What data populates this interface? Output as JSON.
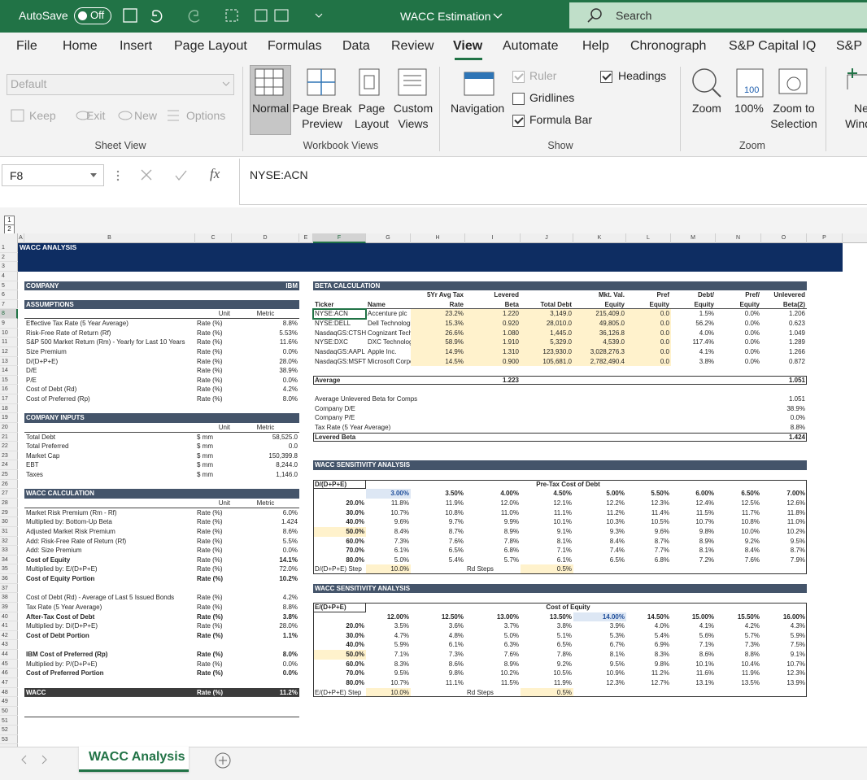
{
  "title_bar": {
    "autosave": "AutoSave",
    "autosave_state": "Off",
    "document": "WACC Estimation",
    "search": "Search"
  },
  "tabs": [
    "File",
    "Home",
    "Insert",
    "Page Layout",
    "Formulas",
    "Data",
    "Review",
    "View",
    "Automate",
    "Help",
    "Chronograph",
    "S&P Capital IQ",
    "S&P"
  ],
  "ribbon": {
    "sheet_view": {
      "dropdown": "Default",
      "buttons": [
        "Keep",
        "Exit",
        "New",
        "Options"
      ],
      "label": "Sheet View"
    },
    "workbook_views": {
      "buttons": [
        "Normal",
        "Page Break Preview",
        "Page Layout",
        "Custom Views"
      ],
      "label": "Workbook Views"
    },
    "navigation": "Navigation",
    "show": {
      "options": [
        {
          "label": "Ruler",
          "checked": true
        },
        {
          "label": "Gridlines",
          "checked": false
        },
        {
          "label": "Formula Bar",
          "checked": true
        },
        {
          "label": "Headings",
          "checked": true
        }
      ],
      "label": "Show"
    },
    "zoom": {
      "buttons": [
        "Zoom",
        "100%",
        "Zoom to Selection"
      ],
      "icon_text": "100",
      "label": "Zoom"
    },
    "window": {
      "buttons": [
        "New Window"
      ]
    }
  },
  "formula_bar": {
    "name_box": "F8",
    "fx": "fx",
    "content": "NYSE:ACN"
  },
  "outline_levels": [
    "1",
    "2"
  ],
  "sheet": {
    "column_headers": [
      "A",
      "B",
      "C",
      "D",
      "E",
      "F",
      "G",
      "H",
      "I",
      "J",
      "K",
      "L",
      "M",
      "N",
      "O",
      "P"
    ],
    "row_headers": [
      "1",
      "2",
      "3",
      "4",
      "5",
      "6",
      "7",
      "8",
      "9",
      "10",
      "11",
      "12",
      "13",
      "14",
      "15",
      "16",
      "17",
      "18",
      "19",
      "20",
      "21",
      "22",
      "23",
      "24",
      "25",
      "26",
      "27",
      "28",
      "29",
      "30",
      "31",
      "32",
      "33",
      "34",
      "35",
      "36",
      "37",
      "38",
      "39",
      "40",
      "41",
      "42",
      "43",
      "44",
      "45",
      "46",
      "47",
      "48",
      "49",
      "50",
      "51",
      "52",
      "53"
    ],
    "rows": [
      {
        "A": "WACC ANALYSIS"
      },
      {},
      {},
      {},
      {
        "B": "COMPANY",
        "D": "IBM",
        "F": "BETA CALCULATION"
      },
      {
        "H": "5Yr Avg Tax",
        "I": "Levered",
        "K": "Mkt. Val.",
        "L": "Pref",
        "M": "Debt/",
        "N": "Pref/",
        "O": "Unlevered"
      },
      {
        "B": "ASSUMPTIONS",
        "F": "Ticker",
        "G": "Name",
        "H": "Rate",
        "I": "Beta",
        "J": "Total Debt",
        "K": "Equity",
        "L": "Equity",
        "M": "Equity",
        "N": "Equity",
        "O": "Beta(2)"
      },
      {
        "C": "Unit",
        "D": "Metric",
        "F": "NYSE:ACN",
        "G": "Accenture plc",
        "H": "23.2%",
        "I": "1.220",
        "J": "3,149.0",
        "K": "215,409.0",
        "L": "0.0",
        "M": "1.5%",
        "N": "0.0%",
        "O": "1.206"
      },
      {
        "B": "Effective Tax Rate (5 Year Average)",
        "C": "Rate (%)",
        "D": "8.8%",
        "F": "NYSE:DELL",
        "G": "Dell Technologies Inc.",
        "H": "15.3%",
        "I": "0.920",
        "J": "28,010.0",
        "K": "49,805.0",
        "L": "0.0",
        "M": "56.2%",
        "N": "0.0%",
        "O": "0.623"
      },
      {
        "B": "Risk-Free Rate of Return (Rf)",
        "C": "Rate (%)",
        "D": "5.53%",
        "F": "NasdaqGS:CTSH",
        "G": "Cognizant Technology Solutions",
        "H": "26.6%",
        "I": "1.080",
        "J": "1,445.0",
        "K": "36,126.8",
        "L": "0.0",
        "M": "4.0%",
        "N": "0.0%",
        "O": "1.049"
      },
      {
        "B": "S&P 500 Market Return (Rm) - Yearly for Last 10 Years",
        "C": "Rate (%)",
        "D": "11.6%",
        "F": "NYSE:DXC",
        "G": "DXC Technology",
        "H": "58.9%",
        "I": "1.910",
        "J": "5,329.0",
        "K": "4,539.0",
        "L": "0.0",
        "M": "117.4%",
        "N": "0.0%",
        "O": "1.289"
      },
      {
        "B": "Size Premium",
        "C": "Rate (%)",
        "D": "0.0%",
        "F": "NasdaqGS:AAPL",
        "G": "Apple Inc.",
        "H": "14.9%",
        "I": "1.310",
        "J": "123,930.0",
        "K": "3,028,276.3",
        "L": "0.0",
        "M": "4.1%",
        "N": "0.0%",
        "O": "1.266"
      },
      {
        "B": "D/(D+P+E)",
        "C": "Rate (%)",
        "D": "28.0%",
        "F": "NasdaqGS:MSFT",
        "G": "Microsoft Corporation",
        "H": "14.5%",
        "I": "0.900",
        "J": "105,681.0",
        "K": "2,782,490.4",
        "L": "0.0",
        "M": "3.8%",
        "N": "0.0%",
        "O": "0.872"
      },
      {
        "B": "D/E",
        "C": "Rate (%)",
        "D": "38.9%"
      },
      {
        "B": "P/E",
        "C": "Rate (%)",
        "D": "0.0%",
        "F": "Average",
        "I": "1.223",
        "O": "1.051"
      },
      {
        "B": "Cost of Debt (Rd)",
        "C": "Rate (%)",
        "D": "4.2%"
      },
      {
        "B": "Cost of Preferred (Rp)",
        "C": "Rate (%)",
        "D": "8.0%",
        "F": "Average Unlevered Beta for Comps",
        "O": "1.051"
      },
      {
        "F": "Company D/E",
        "O": "38.9%"
      },
      {
        "B": "COMPANY INPUTS",
        "F": "Company P/E",
        "O": "0.0%"
      },
      {
        "C": "Unit",
        "D": "Metric",
        "F": "Tax Rate (5 Year Average)",
        "O": "8.8%"
      },
      {
        "B": "Total Debt",
        "C": "$ mm",
        "D": "58,525.0",
        "F": "Levered Beta",
        "O": "1.424"
      },
      {
        "B": "Total Preferred",
        "C": "$ mm",
        "D": "0.0"
      },
      {
        "B": "Market Cap",
        "C": "$ mm",
        "D": "150,399.8"
      },
      {
        "B": "EBT",
        "C": "$ mm",
        "D": "8,244.0",
        "F": "WACC SENSITIVITY ANALYSIS"
      },
      {
        "B": "Taxes",
        "C": "$ mm",
        "D": "1,146.0"
      },
      {
        "F": "D/(D+P+E)",
        "J": "Pre-Tax Cost of Debt"
      },
      {
        "B": "WACC CALCULATION",
        "G": "3.00%",
        "H": "3.50%",
        "I": "4.00%",
        "J": "4.50%",
        "K": "5.00%",
        "L": "5.50%",
        "M": "6.00%",
        "N": "6.50%",
        "O": "7.00%"
      },
      {
        "C": "Unit",
        "D": "Metric",
        "F": "20.0%",
        "G": "11.8%",
        "H": "11.9%",
        "I": "12.0%",
        "J": "12.1%",
        "K": "12.2%",
        "L": "12.3%",
        "M": "12.4%",
        "N": "12.5%",
        "O": "12.6%"
      },
      {
        "B": "Market Risk Premium (Rm - Rf)",
        "C": "Rate (%)",
        "D": "6.0%",
        "F": "30.0%",
        "G": "10.7%",
        "H": "10.8%",
        "I": "11.0%",
        "J": "11.1%",
        "K": "11.2%",
        "L": "11.4%",
        "M": "11.5%",
        "N": "11.7%",
        "O": "11.8%"
      },
      {
        "B": "Multiplied by: Bottom-Up Beta",
        "C": "Rate (%)",
        "D": "1.424",
        "F": "40.0%",
        "G": "9.6%",
        "H": "9.7%",
        "I": "9.9%",
        "J": "10.1%",
        "K": "10.3%",
        "L": "10.5%",
        "M": "10.7%",
        "N": "10.8%",
        "O": "11.0%"
      },
      {
        "B": "Adjusted Market Risk Premium",
        "C": "Rate (%)",
        "D": "8.6%",
        "F": "50.0%",
        "G": "8.4%",
        "H": "8.7%",
        "I": "8.9%",
        "J": "9.1%",
        "K": "9.3%",
        "L": "9.6%",
        "M": "9.8%",
        "N": "10.0%",
        "O": "10.2%"
      },
      {
        "B": "Add: Risk-Free Rate of Return (Rf)",
        "C": "Rate (%)",
        "D": "5.5%",
        "F": "60.0%",
        "G": "7.3%",
        "H": "7.6%",
        "I": "7.8%",
        "J": "8.1%",
        "K": "8.4%",
        "L": "8.7%",
        "M": "8.9%",
        "N": "9.2%",
        "O": "9.5%"
      },
      {
        "B": "Add: Size Premium",
        "C": "Rate (%)",
        "D": "0.0%",
        "F": "70.0%",
        "G": "6.1%",
        "H": "6.5%",
        "I": "6.8%",
        "J": "7.1%",
        "K": "7.4%",
        "L": "7.7%",
        "M": "8.1%",
        "N": "8.4%",
        "O": "8.7%"
      },
      {
        "B": "Cost of Equity",
        "C": "Rate (%)",
        "D": "14.1%",
        "F": "80.0%",
        "G": "5.0%",
        "H": "5.4%",
        "I": "5.7%",
        "J": "6.1%",
        "K": "6.5%",
        "L": "6.8%",
        "M": "7.2%",
        "N": "7.6%",
        "O": "7.9%"
      },
      {
        "B": "Multiplied by: E/(D+P+E)",
        "C": "Rate (%)",
        "D": "72.0%",
        "F": "D/(D+P+E) Step",
        "G": "10.0%",
        "I": "Rd Steps",
        "J": "0.5%"
      },
      {
        "B": "Cost of Equity Portion",
        "C": "Rate (%)",
        "D": "10.2%"
      },
      {
        "F": "WACC SENSITIVITY ANALYSIS"
      },
      {
        "B": "Cost of Debt (Rd) - Average of Last 5 Issued Bonds",
        "C": "Rate (%)",
        "D": "4.2%"
      },
      {
        "B": "Tax Rate (5 Year Average)",
        "C": "Rate (%)",
        "D": "8.8%",
        "F": "E/(D+P+E)",
        "J": "Cost of Equity"
      },
      {
        "B": "After-Tax Cost of Debt",
        "C": "Rate (%)",
        "D": "3.8%",
        "G": "12.00%",
        "H": "12.50%",
        "I": "13.00%",
        "J": "13.50%",
        "K": "14.00%",
        "L": "14.50%",
        "M": "15.00%",
        "N": "15.50%",
        "O": "16.00%"
      },
      {
        "B": "Multiplied by: D/(D+P+E)",
        "C": "Rate (%)",
        "D": "28.0%",
        "F": "20.0%",
        "G": "3.5%",
        "H": "3.6%",
        "I": "3.7%",
        "J": "3.8%",
        "K": "3.9%",
        "L": "4.0%",
        "M": "4.1%",
        "N": "4.2%",
        "O": "4.3%"
      },
      {
        "B": "Cost of Debt Portion",
        "C": "Rate (%)",
        "D": "1.1%",
        "F": "30.0%",
        "G": "4.7%",
        "H": "4.8%",
        "I": "5.0%",
        "J": "5.1%",
        "K": "5.3%",
        "L": "5.4%",
        "M": "5.6%",
        "N": "5.7%",
        "O": "5.9%"
      },
      {
        "F": "40.0%",
        "G": "5.9%",
        "H": "6.1%",
        "I": "6.3%",
        "J": "6.5%",
        "K": "6.7%",
        "L": "6.9%",
        "M": "7.1%",
        "N": "7.3%",
        "O": "7.5%"
      },
      {
        "B": "IBM Cost of Preferred (Rp)",
        "C": "Rate (%)",
        "D": "8.0%",
        "F": "50.0%",
        "G": "7.1%",
        "H": "7.3%",
        "I": "7.6%",
        "J": "7.8%",
        "K": "8.1%",
        "L": "8.3%",
        "M": "8.6%",
        "N": "8.8%",
        "O": "9.1%"
      },
      {
        "B": "Multiplied by: P/(D+P+E)",
        "C": "Rate (%)",
        "D": "0.0%",
        "F": "60.0%",
        "G": "8.3%",
        "H": "8.6%",
        "I": "8.9%",
        "J": "9.2%",
        "K": "9.5%",
        "L": "9.8%",
        "M": "10.1%",
        "N": "10.4%",
        "O": "10.7%"
      },
      {
        "B": "Cost of Preferred Portion",
        "C": "Rate (%)",
        "D": "0.0%",
        "F": "70.0%",
        "G": "9.5%",
        "H": "9.8%",
        "I": "10.2%",
        "J": "10.5%",
        "K": "10.9%",
        "L": "11.2%",
        "M": "11.6%",
        "N": "11.9%",
        "O": "12.3%"
      },
      {
        "F": "80.0%",
        "G": "10.7%",
        "H": "11.1%",
        "I": "11.5%",
        "J": "11.9%",
        "K": "12.3%",
        "L": "12.7%",
        "M": "13.1%",
        "N": "13.5%",
        "O": "13.9%"
      },
      {
        "B": "WACC",
        "C": "Rate (%)",
        "D": "11.2%",
        "F": "E/(D+P+E) Step",
        "G": "10.0%",
        "I": "Rd Steps",
        "J": "0.5%"
      },
      {},
      {},
      {},
      {},
      {}
    ]
  },
  "sheet_tabs": [
    "WACC Analysis"
  ]
}
